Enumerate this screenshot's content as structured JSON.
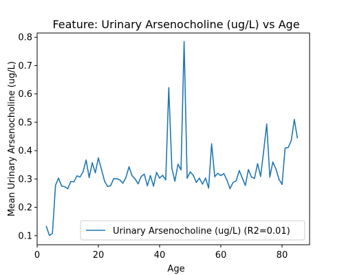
{
  "chart_data": {
    "type": "line",
    "title": "Feature: Urinary Arsenocholine (ug/L) vs Age",
    "xlabel": "Age",
    "ylabel": "Mean Urinary Arsenocholine (ug/L)",
    "xlim": [
      0,
      89
    ],
    "ylim": [
      0.068,
      0.815
    ],
    "xticks": [
      0,
      20,
      40,
      60,
      80
    ],
    "yticks": [
      0.1,
      0.2,
      0.3,
      0.4,
      0.5,
      0.6,
      0.7,
      0.8
    ],
    "grid": false,
    "legend_position": "lower-right",
    "series": [
      {
        "name": "Urinary Arsenocholine (ug/L) (R2=0.01)",
        "color": "#1f77b4",
        "x": [
          3,
          4,
          5,
          6,
          7,
          8,
          9,
          10,
          11,
          12,
          13,
          14,
          15,
          16,
          17,
          18,
          19,
          20,
          21,
          22,
          23,
          24,
          25,
          26,
          27,
          28,
          29,
          30,
          31,
          32,
          33,
          34,
          35,
          36,
          37,
          38,
          39,
          40,
          41,
          42,
          43,
          44,
          45,
          46,
          47,
          48,
          49,
          50,
          51,
          52,
          53,
          54,
          55,
          56,
          57,
          58,
          59,
          60,
          61,
          62,
          63,
          64,
          65,
          66,
          67,
          68,
          69,
          70,
          71,
          72,
          73,
          74,
          75,
          76,
          77,
          78,
          79,
          80,
          81,
          82,
          83,
          84,
          85
        ],
        "y": [
          0.133,
          0.101,
          0.108,
          0.278,
          0.303,
          0.275,
          0.273,
          0.266,
          0.291,
          0.29,
          0.311,
          0.307,
          0.325,
          0.367,
          0.305,
          0.357,
          0.322,
          0.374,
          0.335,
          0.293,
          0.274,
          0.276,
          0.301,
          0.301,
          0.297,
          0.285,
          0.305,
          0.343,
          0.312,
          0.3,
          0.283,
          0.309,
          0.317,
          0.276,
          0.312,
          0.275,
          0.323,
          0.303,
          0.313,
          0.297,
          0.622,
          0.338,
          0.292,
          0.352,
          0.332,
          0.785,
          0.303,
          0.325,
          0.313,
          0.288,
          0.303,
          0.282,
          0.303,
          0.268,
          0.424,
          0.308,
          0.32,
          0.312,
          0.319,
          0.296,
          0.266,
          0.288,
          0.293,
          0.33,
          0.304,
          0.277,
          0.333,
          0.307,
          0.302,
          0.354,
          0.309,
          0.4,
          0.494,
          0.307,
          0.36,
          0.335,
          0.299,
          0.281,
          0.409,
          0.411,
          0.435,
          0.51,
          0.445
        ]
      }
    ]
  }
}
